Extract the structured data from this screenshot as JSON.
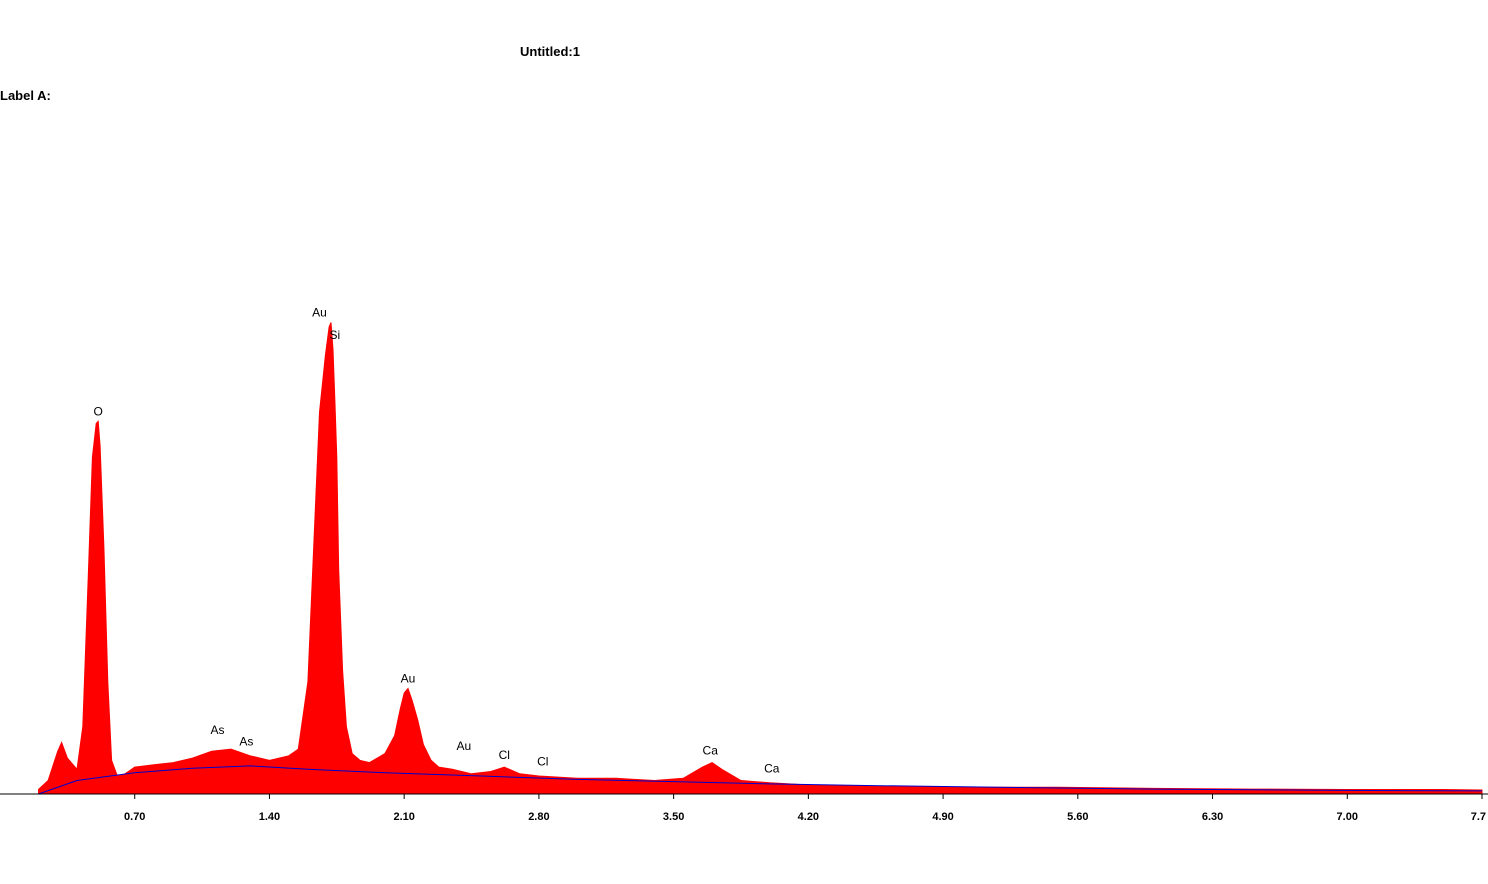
{
  "window": {
    "title": "Untitled:1",
    "label_a": "Label A:"
  },
  "colors": {
    "spectrum": "#ff0000",
    "background_fit": "#0000cc",
    "axis": "#000000"
  },
  "chart_data": {
    "type": "area",
    "title": "",
    "xlabel": "",
    "ylabel": "",
    "xlim": [
      0,
      7.7
    ],
    "ylim": [
      0,
      2200
    ],
    "grid": false,
    "x_ticks": [
      {
        "value": 0.7,
        "label": "0.70"
      },
      {
        "value": 1.4,
        "label": "1.40"
      },
      {
        "value": 2.1,
        "label": "2.10"
      },
      {
        "value": 2.8,
        "label": "2.80"
      },
      {
        "value": 3.5,
        "label": "3.50"
      },
      {
        "value": 4.2,
        "label": "4.20"
      },
      {
        "value": 4.9,
        "label": "4.90"
      },
      {
        "value": 5.6,
        "label": "5.60"
      },
      {
        "value": 6.3,
        "label": "6.30"
      },
      {
        "value": 7.0,
        "label": "7.00"
      },
      {
        "value": 7.7,
        "label": "7.7"
      }
    ],
    "peaks": [
      {
        "element": "O",
        "x": 0.51,
        "y": 1660
      },
      {
        "element": "Au",
        "x": 1.66,
        "y": 2100,
        "label_offset": -1
      },
      {
        "element": "Si",
        "x": 1.74,
        "y": 2000
      },
      {
        "element": "Au",
        "x": 2.12,
        "y": 470
      },
      {
        "element": "As",
        "x": 1.13,
        "y": 240
      },
      {
        "element": "As",
        "x": 1.28,
        "y": 190
      },
      {
        "element": "Au",
        "x": 2.41,
        "y": 170
      },
      {
        "element": "Cl",
        "x": 2.62,
        "y": 130
      },
      {
        "element": "Cl",
        "x": 2.82,
        "y": 100
      },
      {
        "element": "Ca",
        "x": 3.69,
        "y": 150
      },
      {
        "element": "Ca",
        "x": 4.01,
        "y": 70
      }
    ],
    "series": [
      {
        "x": [
          0.2,
          0.25,
          0.3,
          0.32,
          0.35,
          0.4,
          0.43,
          0.46,
          0.48,
          0.5,
          0.51,
          0.52,
          0.54,
          0.56,
          0.58,
          0.61,
          0.65,
          0.7,
          0.8,
          0.9,
          1.0,
          1.1,
          1.2,
          1.3,
          1.4,
          1.5,
          1.55,
          1.6,
          1.63,
          1.66,
          1.69,
          1.71,
          1.72,
          1.73,
          1.74,
          1.75,
          1.76,
          1.78,
          1.8,
          1.83,
          1.87,
          1.92,
          2.0,
          2.05,
          2.08,
          2.1,
          2.12,
          2.14,
          2.17,
          2.2,
          2.24,
          2.28,
          2.35,
          2.45,
          2.55,
          2.62,
          2.7,
          2.8,
          3.0,
          3.2,
          3.4,
          3.55,
          3.65,
          3.7,
          3.75,
          3.85,
          4.0,
          4.2,
          4.5,
          5.0,
          5.5,
          6.0,
          6.5,
          7.0,
          7.5,
          7.7
        ],
        "y": [
          20,
          60,
          190,
          230,
          160,
          110,
          300,
          1000,
          1500,
          1650,
          1660,
          1550,
          1100,
          500,
          150,
          80,
          90,
          120,
          130,
          140,
          160,
          190,
          200,
          170,
          150,
          170,
          200,
          500,
          1100,
          1700,
          1950,
          2080,
          2100,
          1980,
          1750,
          1500,
          1000,
          550,
          300,
          180,
          150,
          140,
          180,
          260,
          380,
          450,
          470,
          420,
          330,
          220,
          150,
          120,
          110,
          90,
          100,
          120,
          90,
          80,
          70,
          70,
          60,
          70,
          120,
          140,
          110,
          60,
          50,
          40,
          35,
          30,
          30,
          25,
          22,
          20,
          20,
          18
        ]
      }
    ],
    "background": {
      "x": [
        0.2,
        0.4,
        0.7,
        1.0,
        1.3,
        1.6,
        2.0,
        2.5,
        3.0,
        3.5,
        4.0,
        4.5,
        5.0,
        6.0,
        7.0,
        7.7
      ],
      "y": [
        0,
        60,
        95,
        115,
        125,
        110,
        95,
        80,
        65,
        55,
        45,
        38,
        32,
        22,
        16,
        14
      ]
    }
  }
}
